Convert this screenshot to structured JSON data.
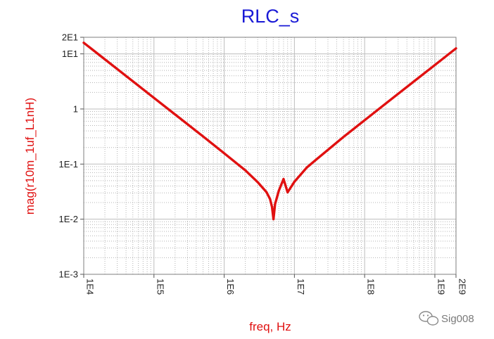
{
  "chart_data": {
    "type": "line",
    "title": "RLC_s",
    "xlabel": "freq, Hz",
    "ylabel": "mag(r10m_1uf_L1nH)",
    "x_scale": "log",
    "y_scale": "log",
    "xlim": [
      10000,
      2000000000
    ],
    "ylim": [
      0.001,
      20
    ],
    "x_ticks": [
      {
        "value": 10000,
        "label": "1E4"
      },
      {
        "value": 100000,
        "label": "1E5"
      },
      {
        "value": 1000000,
        "label": "1E6"
      },
      {
        "value": 10000000,
        "label": "1E7"
      },
      {
        "value": 100000000,
        "label": "1E8"
      },
      {
        "value": 1000000000,
        "label": "1E9"
      },
      {
        "value": 2000000000,
        "label": "2E9"
      }
    ],
    "y_ticks": [
      {
        "value": 0.001,
        "label": "1E-3"
      },
      {
        "value": 0.01,
        "label": "1E-2"
      },
      {
        "value": 0.1,
        "label": "1E-1"
      },
      {
        "value": 1,
        "label": "1"
      },
      {
        "value": 10,
        "label": "1E1"
      },
      {
        "value": 20,
        "label": "2E1"
      }
    ],
    "grid": true,
    "series": [
      {
        "color": "#e01010",
        "points": [
          [
            10000,
            15.9
          ],
          [
            20000,
            7.96
          ],
          [
            50000,
            3.18
          ],
          [
            100000,
            1.59
          ],
          [
            200000,
            0.795
          ],
          [
            500000,
            0.318
          ],
          [
            1000000,
            0.157
          ],
          [
            2000000,
            0.077
          ],
          [
            3000000,
            0.047
          ],
          [
            4000000,
            0.031
          ],
          [
            4500000,
            0.0232
          ],
          [
            4800000,
            0.0166
          ],
          [
            5033000,
            0.01
          ],
          [
            5300000,
            0.0187
          ],
          [
            6000000,
            0.0329
          ],
          [
            7000000,
            0.0536
          ],
          [
            8000000,
            0.0308
          ],
          [
            10000000,
            0.0478
          ],
          [
            15000000,
            0.0865
          ],
          [
            20000000,
            0.118
          ],
          [
            50000000,
            0.311
          ],
          [
            100000000,
            0.625
          ],
          [
            200000000,
            1.256
          ],
          [
            500000000,
            3.14
          ],
          [
            1000000000,
            6.28
          ],
          [
            2000000000,
            12.57
          ]
        ]
      }
    ]
  },
  "watermark": {
    "text": "Sig008",
    "icon": "wechat-icon"
  }
}
